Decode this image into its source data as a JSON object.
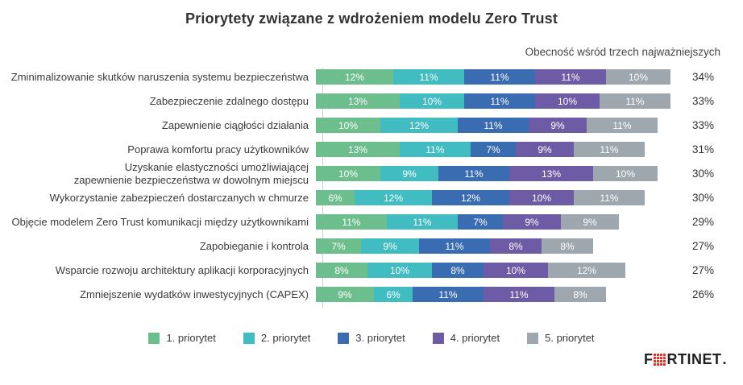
{
  "title": "Priorytety związane z wdrożeniem modelu Zero Trust",
  "subtitle": "Obecność wśród trzech najważniejszych",
  "chart_data": {
    "type": "bar",
    "orientation": "horizontal",
    "stacked": true,
    "unit": "%",
    "legend_position": "bottom",
    "series_names": [
      "1. priorytet",
      "2. priorytet",
      "3. priorytet",
      "4. priorytet",
      "5. priorytet"
    ],
    "series_colors": [
      "#6cbe8d",
      "#41bcc1",
      "#3a6cb1",
      "#6d5ba6",
      "#9da7ad"
    ],
    "categories": [
      "Zminimalizowanie skutków naruszenia systemu bezpieczeństwa",
      "Zabezpieczenie zdalnego dostępu",
      "Zapewnienie ciągłości działania",
      "Poprawa komfortu pracy użytkowników",
      "Uzyskanie elastyczności umożliwiającej\nzapewnienie bezpieczeństwa w dowolnym miejscu",
      "Wykorzystanie zabezpieczeń dostarczanych w chmurze",
      "Objęcie modelem Zero Trust komunikacji między użytkownikami",
      "Zapobieganie i kontrola",
      "Wsparcie rozwoju architektury aplikacji korporacyjnych",
      "Zmniejszenie wydatków inwestycyjnych (CAPEX)"
    ],
    "values": [
      [
        12,
        11,
        11,
        11,
        10
      ],
      [
        13,
        10,
        11,
        10,
        11
      ],
      [
        10,
        12,
        11,
        9,
        11
      ],
      [
        13,
        11,
        7,
        9,
        11
      ],
      [
        10,
        9,
        11,
        13,
        10
      ],
      [
        6,
        12,
        12,
        10,
        11
      ],
      [
        11,
        11,
        7,
        9,
        9
      ],
      [
        7,
        9,
        11,
        8,
        8
      ],
      [
        8,
        10,
        8,
        10,
        12
      ],
      [
        9,
        6,
        11,
        11,
        8
      ]
    ],
    "totals": [
      34,
      33,
      33,
      31,
      30,
      30,
      29,
      27,
      27,
      26
    ],
    "totals_column_header": "Obecność wśród trzech najważniejszych"
  },
  "logo": {
    "prefix": "F",
    "suffix": "RTINET",
    "dot": ".",
    "brand_red": "#ee3124",
    "brand_name": "Fortinet"
  }
}
